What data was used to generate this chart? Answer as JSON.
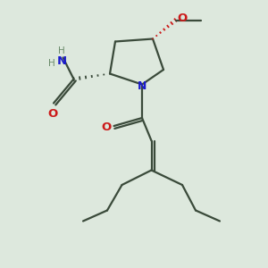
{
  "bg_color": "#dde8dd",
  "bond_color": "#3a4a3a",
  "N_color": "#1a1acc",
  "O_color": "#cc1a1a",
  "H_color": "#6a8a6a",
  "line_width": 1.6,
  "figsize": [
    3.0,
    3.0
  ],
  "dpi": 100,
  "xlim": [
    0,
    10
  ],
  "ylim": [
    0,
    10
  ]
}
